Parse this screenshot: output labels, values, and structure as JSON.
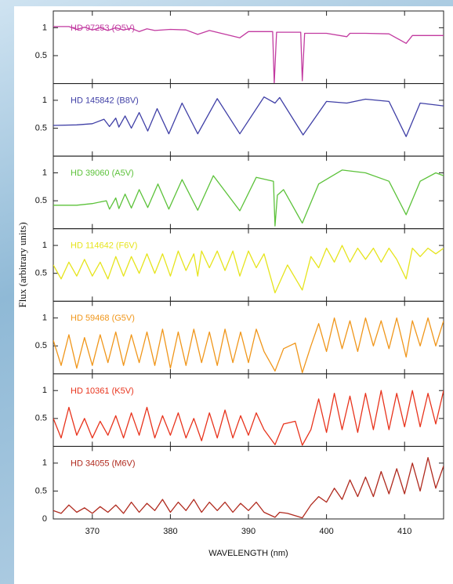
{
  "chart_data": [
    {
      "type": "line",
      "xlim": [
        365,
        415
      ],
      "ylim": [
        0,
        1.3
      ],
      "yticks": [
        0.5,
        1
      ],
      "x": [
        365,
        367,
        368,
        369,
        370,
        371,
        372,
        373,
        374,
        375,
        376,
        377,
        378,
        380,
        382,
        383.5,
        385,
        388.9,
        390,
        393.1,
        393.3,
        393.6,
        396.7,
        396.9,
        397.2,
        400,
        402.6,
        403,
        405,
        408,
        410.2,
        411,
        413,
        415
      ],
      "series": [
        {
          "name": "HD 97253 (O5V)",
          "color": "#c23aa0",
          "values": [
            1.02,
            1.02,
            0.97,
            1.01,
            0.96,
            1.0,
            0.95,
            1.0,
            0.96,
            0.99,
            0.93,
            0.98,
            0.95,
            0.97,
            0.96,
            0.88,
            0.95,
            0.82,
            0.93,
            0.93,
            0.0,
            0.92,
            0.92,
            0.05,
            0.9,
            0.9,
            0.84,
            0.9,
            0.9,
            0.89,
            0.72,
            0.86,
            0.86,
            0.86
          ]
        }
      ]
    },
    {
      "type": "line",
      "xlim": [
        365,
        415
      ],
      "ylim": [
        0,
        1.3
      ],
      "yticks": [
        0.5,
        1
      ],
      "x": [
        365,
        368,
        370,
        371.5,
        372.2,
        373,
        373.4,
        374.2,
        375,
        376,
        377.1,
        378.3,
        379.8,
        381.5,
        383.5,
        386,
        388.9,
        392,
        393.4,
        394,
        397,
        400,
        402.6,
        405,
        408,
        410.2,
        412,
        415
      ],
      "series": [
        {
          "name": "HD 145842 (B8V)",
          "color": "#3f3fa6",
          "values": [
            0.55,
            0.56,
            0.58,
            0.66,
            0.53,
            0.68,
            0.52,
            0.72,
            0.5,
            0.78,
            0.45,
            0.85,
            0.4,
            0.95,
            0.4,
            1.03,
            0.4,
            1.06,
            0.95,
            1.05,
            0.38,
            0.98,
            0.95,
            1.02,
            0.98,
            0.35,
            0.95,
            0.9
          ]
        }
      ]
    },
    {
      "type": "line",
      "xlim": [
        365,
        415
      ],
      "ylim": [
        0,
        1.3
      ],
      "yticks": [
        0.5,
        1
      ],
      "x": [
        365,
        368,
        370,
        371.8,
        372.2,
        373,
        373.4,
        374.2,
        375,
        376,
        377.1,
        378.4,
        379.8,
        381.5,
        383.5,
        385.5,
        388.9,
        391,
        393.2,
        393.4,
        393.7,
        394.5,
        396.9,
        399,
        402,
        405,
        408,
        410.2,
        412,
        414,
        415
      ],
      "series": [
        {
          "name": "HD 39060 (A5V)",
          "color": "#5cc23a",
          "values": [
            0.42,
            0.42,
            0.45,
            0.5,
            0.35,
            0.55,
            0.36,
            0.62,
            0.37,
            0.7,
            0.38,
            0.8,
            0.35,
            0.88,
            0.33,
            0.95,
            0.32,
            0.92,
            0.85,
            0.05,
            0.6,
            0.7,
            0.1,
            0.8,
            1.05,
            1.0,
            0.85,
            0.25,
            0.85,
            1.0,
            0.95
          ]
        }
      ]
    },
    {
      "type": "line",
      "xlim": [
        365,
        415
      ],
      "ylim": [
        0,
        1.3
      ],
      "yticks": [
        0.5,
        1
      ],
      "ylabel": "Flux (arbitrary units)",
      "x": [
        365,
        366,
        367,
        368,
        369,
        370,
        371,
        372,
        373,
        374,
        375,
        376,
        377,
        378,
        379,
        380,
        381,
        382,
        383,
        383.5,
        384,
        385,
        386,
        387,
        388,
        388.9,
        390,
        391,
        392,
        393.4,
        395,
        396.9,
        398,
        399,
        400,
        401,
        402,
        403,
        404,
        405,
        406,
        407,
        408,
        409,
        410.2,
        411,
        412,
        413,
        414,
        415
      ],
      "series": [
        {
          "name": "HD 114642 (F6V)",
          "color": "#e6e41c",
          "values": [
            0.65,
            0.4,
            0.7,
            0.45,
            0.75,
            0.45,
            0.7,
            0.4,
            0.8,
            0.45,
            0.8,
            0.5,
            0.85,
            0.5,
            0.85,
            0.45,
            0.9,
            0.55,
            0.85,
            0.45,
            0.9,
            0.6,
            0.9,
            0.55,
            0.9,
            0.45,
            0.9,
            0.6,
            0.85,
            0.15,
            0.65,
            0.2,
            0.8,
            0.6,
            0.95,
            0.7,
            1.0,
            0.7,
            0.95,
            0.75,
            0.95,
            0.7,
            0.95,
            0.75,
            0.4,
            0.95,
            0.8,
            0.95,
            0.85,
            0.95
          ]
        }
      ]
    },
    {
      "type": "line",
      "xlim": [
        365,
        415
      ],
      "ylim": [
        0,
        1.3
      ],
      "yticks": [
        0.5,
        1
      ],
      "x": [
        365,
        366,
        367,
        368,
        369,
        370,
        371,
        372,
        373,
        374,
        375,
        376,
        377,
        378,
        379,
        380,
        381,
        382,
        383,
        384,
        385,
        386,
        387,
        388,
        389,
        390,
        391,
        392,
        393.4,
        394.5,
        396,
        396.9,
        398,
        399,
        400,
        401,
        402,
        403,
        404,
        405,
        406,
        407,
        408,
        409,
        410.2,
        411,
        412,
        413,
        414,
        415
      ],
      "series": [
        {
          "name": "HD 59468 (G5V)",
          "color": "#f0961a",
          "values": [
            0.6,
            0.15,
            0.7,
            0.1,
            0.65,
            0.15,
            0.7,
            0.2,
            0.75,
            0.15,
            0.7,
            0.2,
            0.75,
            0.15,
            0.8,
            0.1,
            0.75,
            0.15,
            0.8,
            0.2,
            0.75,
            0.15,
            0.8,
            0.2,
            0.75,
            0.2,
            0.8,
            0.4,
            0.05,
            0.45,
            0.55,
            0.02,
            0.5,
            0.9,
            0.4,
            1.0,
            0.45,
            0.95,
            0.4,
            1.0,
            0.5,
            0.95,
            0.45,
            1.0,
            0.3,
            0.95,
            0.5,
            1.0,
            0.5,
            0.95
          ]
        }
      ]
    },
    {
      "type": "line",
      "xlim": [
        365,
        415
      ],
      "ylim": [
        0,
        1.3
      ],
      "yticks": [
        0.5,
        1
      ],
      "x": [
        365,
        366,
        367,
        368,
        369,
        370,
        371,
        372,
        373,
        374,
        375,
        376,
        377,
        378,
        379,
        380,
        381,
        382,
        383,
        384,
        385,
        386,
        387,
        388,
        389,
        390,
        391,
        392,
        393.4,
        394.5,
        396,
        396.9,
        398,
        399,
        400,
        401,
        402,
        403,
        404,
        405,
        406,
        407,
        408,
        409,
        410,
        411,
        412,
        413,
        414,
        415
      ],
      "series": [
        {
          "name": "HD 10361 (K5V)",
          "color": "#e8331c",
          "values": [
            0.5,
            0.15,
            0.7,
            0.2,
            0.5,
            0.15,
            0.45,
            0.2,
            0.55,
            0.15,
            0.6,
            0.2,
            0.7,
            0.15,
            0.55,
            0.2,
            0.6,
            0.15,
            0.5,
            0.1,
            0.6,
            0.15,
            0.65,
            0.15,
            0.55,
            0.2,
            0.6,
            0.3,
            0.03,
            0.4,
            0.45,
            0.02,
            0.3,
            0.85,
            0.25,
            0.95,
            0.3,
            0.9,
            0.25,
            0.95,
            0.3,
            1.0,
            0.3,
            0.95,
            0.35,
            1.0,
            0.35,
            0.95,
            0.4,
            1.0
          ]
        }
      ]
    },
    {
      "type": "line",
      "xlim": [
        365,
        415
      ],
      "ylim": [
        0,
        1.3
      ],
      "yticks": [
        0,
        0.5,
        1
      ],
      "xticks": [
        370,
        380,
        390,
        400,
        410
      ],
      "xlabel": "WAVELENGTH (nm)",
      "x": [
        365,
        366,
        367,
        368,
        369,
        370,
        371,
        372,
        373,
        374,
        375,
        376,
        377,
        378,
        379,
        380,
        381,
        382,
        383,
        384,
        385,
        386,
        387,
        388,
        389,
        390,
        391,
        392,
        393.4,
        394,
        395,
        396.9,
        398,
        399,
        400,
        401,
        402,
        403,
        404,
        405,
        406,
        407,
        408,
        409,
        410,
        411,
        412,
        413,
        414,
        415
      ],
      "series": [
        {
          "name": "HD 34055 (M6V)",
          "color": "#b02a1e",
          "values": [
            0.15,
            0.1,
            0.25,
            0.12,
            0.2,
            0.1,
            0.22,
            0.12,
            0.25,
            0.1,
            0.3,
            0.12,
            0.28,
            0.15,
            0.35,
            0.12,
            0.3,
            0.15,
            0.35,
            0.12,
            0.3,
            0.15,
            0.3,
            0.12,
            0.28,
            0.15,
            0.3,
            0.12,
            0.03,
            0.12,
            0.1,
            0.02,
            0.25,
            0.4,
            0.3,
            0.55,
            0.35,
            0.7,
            0.4,
            0.75,
            0.4,
            0.85,
            0.45,
            0.9,
            0.45,
            1.0,
            0.5,
            1.1,
            0.55,
            0.95
          ]
        }
      ]
    }
  ]
}
